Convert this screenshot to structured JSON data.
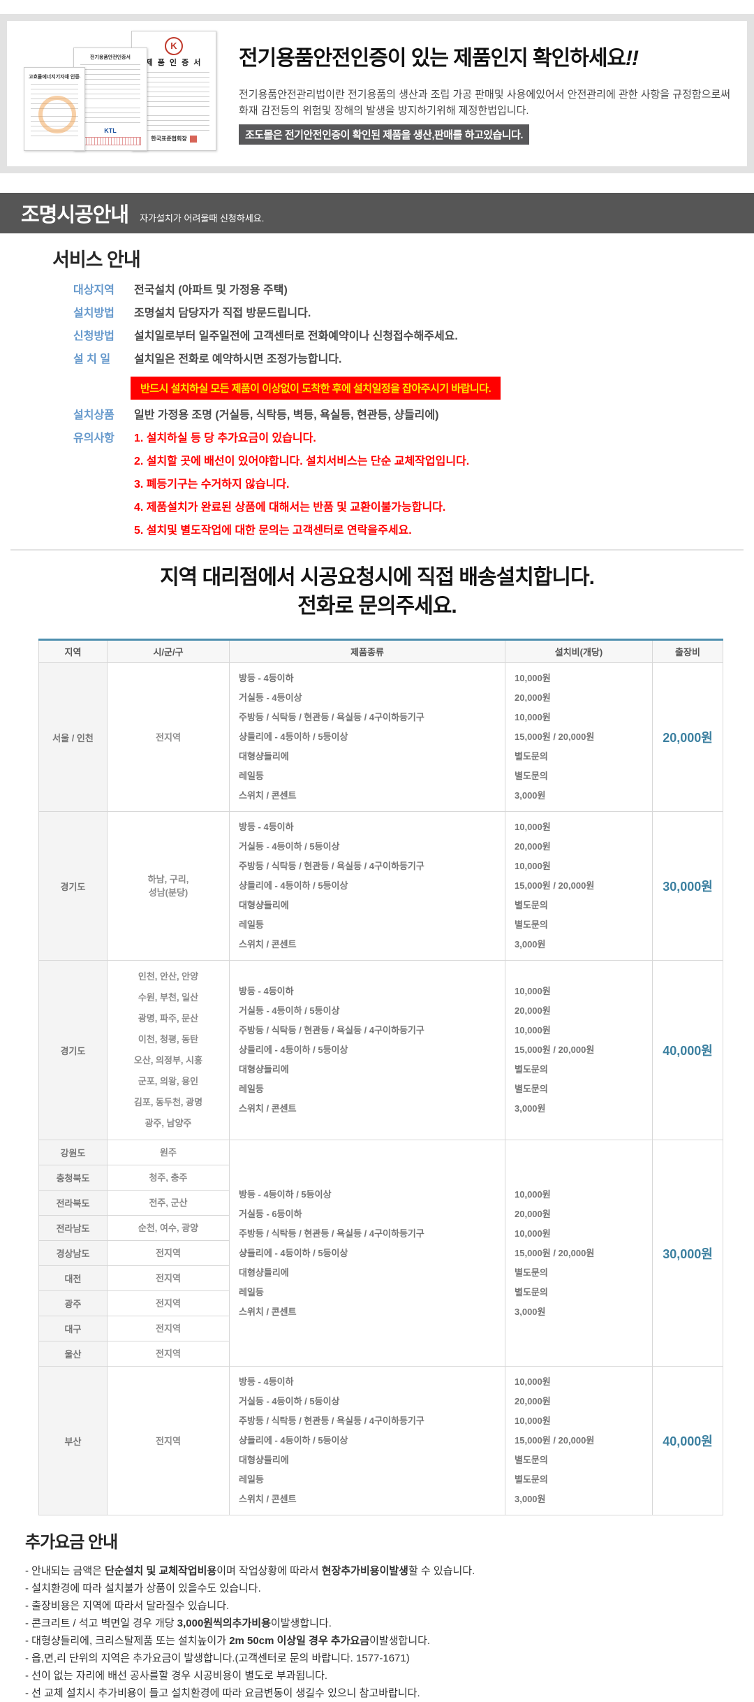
{
  "certification": {
    "title_strong": "전기용품안전인증",
    "title_rest": "이 있는 제품인지 확인하세요",
    "title_bang": "!!",
    "desc_line1": "전기용품안전관리법이란 전기용품의 생산과 조립 가공 판매및 사용에있어서 안전관리에 관한 사항을 규정함으로써",
    "desc_line2": "화재 감전등의 위험및 장해의 발생을 방지하기위해 제정한법입니다.",
    "highlight": "조도몰은 전기안전인증이 확인된 제품을 생산,판매를 하고있습니다.",
    "cert1_title": "고효율에너지기자재 인증서",
    "cert2_title": "전기용품안전인증서",
    "cert3_title": "제 품 인 증 서",
    "cert3_logo": "K",
    "cert3_footer": "한국표준협회장",
    "cert2_mark": "KTL"
  },
  "banner": {
    "title": "조명시공안내",
    "subtitle": "자가설치가 어려울때 신청하세요."
  },
  "service": {
    "heading": "서비스 안내",
    "info_rows": [
      {
        "label": "대상지역",
        "value": "전국설치 (아파트 및 가정용 주택)"
      },
      {
        "label": "설치방법",
        "value": "조명설치 담당자가 직접 방문드립니다."
      },
      {
        "label": "신청방법",
        "value": "설치일로부터 일주일전에 고객센터로 전화예약이나 신청접수해주세요."
      },
      {
        "label": "설 치 일",
        "value": "설치일은 전화로 예약하시면 조정가능합니다."
      }
    ],
    "warning": "반드시 설치하실 모든 제품이 이상없이 도착한 후에 설치일정을 잡아주시기 바랍니다.",
    "product_row": {
      "label": "설치상품",
      "value": "일반 가정용 조명 (거실등, 식탁등, 벽등, 욕실등, 현관등, 샹들리에)"
    },
    "notice_label": "유의사항",
    "notices": [
      "1. 설치하실 등 당 추가요금이 있습니다.",
      "2. 설치할 곳에 배선이 있어야합니다. 설치서비스는 단순 교체작업입니다.",
      "3. 폐등기구는 수거하지 않습니다.",
      "4. 제품설치가 완료된 상품에 대해서는 반품 및 교환이불가능합니다.",
      "5. 설치및 별도작업에 대한 문의는 고객센터로 연락을주세요."
    ]
  },
  "delivery_heading": {
    "line1": "지역 대리점에서 시공요청시에 직접 배송설치합니다.",
    "line2": "전화로 문의주세요."
  },
  "install_table": {
    "headers": [
      "지역",
      "시/군/구",
      "제품종류",
      "설치비(개당)",
      "출장비"
    ],
    "sections": [
      {
        "rows": [
          {
            "region": "서울 / 인천",
            "districts": [
              "전지역"
            ]
          }
        ],
        "products": [
          {
            "name": "방등 - 4등이하",
            "price": "10,000원"
          },
          {
            "name": "거실등 - 4등이상",
            "price": "20,000원"
          },
          {
            "name": "주방등 / 식탁등 / 현관등 / 욕실등 / 4구이하등기구",
            "price": "10,000원"
          },
          {
            "name": "샹들리에 - 4등이하 / 5등이상",
            "price": "15,000원 / 20,000원"
          },
          {
            "name": "대형샹들리에",
            "price": "별도문의"
          },
          {
            "name": "레일등",
            "price": "별도문의"
          },
          {
            "name": "스위치 / 콘센트",
            "price": "3,000원"
          }
        ],
        "fee": "20,000원"
      },
      {
        "rows": [
          {
            "region": "경기도",
            "districts": [
              "하남, 구리,",
              "성남(분당)"
            ]
          }
        ],
        "products": [
          {
            "name": "방등 - 4등이하",
            "price": "10,000원"
          },
          {
            "name": "거실등 - 4등이하 / 5등이상",
            "price": "20,000원"
          },
          {
            "name": "주방등 / 식탁등 / 현관등 / 욕실등 / 4구이하등기구",
            "price": "10,000원"
          },
          {
            "name": "샹들리에 - 4등이하 / 5등이상",
            "price": "15,000원 / 20,000원"
          },
          {
            "name": "대형샹들리에",
            "price": "별도문의"
          },
          {
            "name": "레일등",
            "price": "별도문의"
          },
          {
            "name": "스위치 / 콘센트",
            "price": "3,000원"
          }
        ],
        "fee": "30,000원"
      },
      {
        "rows": [
          {
            "region": "경기도",
            "dlh": 30,
            "districts": [
              "인천, 안산, 안양",
              "수원, 부천, 일산",
              "광명, 파주, 문산",
              "이천, 청평, 동탄",
              "오산, 의정부, 시흥",
              "군포, 의왕, 용인",
              "김포, 동두천, 광명",
              "광주, 남양주"
            ]
          }
        ],
        "products": [
          {
            "name": "방등 - 4등이하",
            "price": "10,000원"
          },
          {
            "name": "거실등 - 4등이하 / 5등이상",
            "price": "20,000원"
          },
          {
            "name": "주방등 / 식탁등 / 현관등 / 욕실등 / 4구이하등기구",
            "price": "10,000원"
          },
          {
            "name": "샹들리에 - 4등이하 / 5등이상",
            "price": "15,000원 / 20,000원"
          },
          {
            "name": "대형샹들리에",
            "price": "별도문의"
          },
          {
            "name": "레일등",
            "price": "별도문의"
          },
          {
            "name": "스위치 / 콘센트",
            "price": "3,000원"
          }
        ],
        "fee": "40,000원"
      },
      {
        "rows": [
          {
            "region": "강원도",
            "districts": [
              "원주"
            ]
          },
          {
            "region": "충청북도",
            "districts": [
              "청주, 충주"
            ]
          },
          {
            "region": "전라북도",
            "districts": [
              "전주, 군산"
            ]
          },
          {
            "region": "전라남도",
            "districts": [
              "순천, 여수, 광양"
            ]
          },
          {
            "region": "경상남도",
            "districts": [
              "전지역"
            ]
          },
          {
            "region": "대전",
            "districts": [
              "전지역"
            ]
          },
          {
            "region": "광주",
            "districts": [
              "전지역"
            ]
          },
          {
            "region": "대구",
            "districts": [
              "전지역"
            ]
          },
          {
            "region": "울산",
            "districts": [
              "전지역"
            ]
          }
        ],
        "products": [
          {
            "name": "방등 - 4등이하 / 5등이상",
            "price": "10,000원"
          },
          {
            "name": "거실등 - 6등이하",
            "price": "20,000원"
          },
          {
            "name": "주방등 / 식탁등 / 현관등 / 욕실등 / 4구이하등기구",
            "price": "10,000원"
          },
          {
            "name": "샹들리에 - 4등이하 / 5등이상",
            "price": "15,000원 / 20,000원"
          },
          {
            "name": "대형샹들리에",
            "price": "별도문의"
          },
          {
            "name": "레일등",
            "price": "별도문의"
          },
          {
            "name": "스위치 / 콘센트",
            "price": "3,000원"
          }
        ],
        "fee": "30,000원"
      },
      {
        "rows": [
          {
            "region": "부산",
            "districts": [
              "전지역"
            ]
          }
        ],
        "products": [
          {
            "name": "방등 - 4등이하",
            "price": "10,000원"
          },
          {
            "name": "거실등 - 4등이하 / 5등이상",
            "price": "20,000원"
          },
          {
            "name": "주방등 / 식탁등 / 현관등 / 욕실등 / 4구이하등기구",
            "price": "10,000원"
          },
          {
            "name": "샹들리에 - 4등이하 / 5등이상",
            "price": "15,000원 / 20,000원"
          },
          {
            "name": "대형샹들리에",
            "price": "별도문의"
          },
          {
            "name": "레일등",
            "price": "별도문의"
          },
          {
            "name": "스위치 / 콘센트",
            "price": "3,000원"
          }
        ],
        "fee": "40,000원"
      }
    ]
  },
  "extra_fees": {
    "heading": "추가요금 안내",
    "items": [
      [
        {
          "t": "- 안내되는 금액은 "
        },
        {
          "t": "단순설치 및 교체작업비용",
          "b": true
        },
        {
          "t": "이며 작업상황에 따라서 "
        },
        {
          "t": "현장추가비용이발생",
          "b": true
        },
        {
          "t": "할 수 있습니다."
        }
      ],
      [
        {
          "t": "- 설치환경에 따라 설치불가 상품이 있을수도 있습니다."
        }
      ],
      [
        {
          "t": "- 출장비용은 지역에 따라서 달라질수 있습니다."
        }
      ],
      [
        {
          "t": "- 콘크리트 / 석고 벽면일 경우 개당 "
        },
        {
          "t": "3,000원씩의추가비용",
          "b": true
        },
        {
          "t": "이발생합니다."
        }
      ],
      [
        {
          "t": "- 대형샹들리에, 크리스탈제품 또는 설치높이가 "
        },
        {
          "t": "2m 50cm 이상일 경우 추가요금",
          "b": true
        },
        {
          "t": "이발생합니다."
        }
      ],
      [
        {
          "t": "- 읍,면,리 단위의 지역은 추가요금이 발생합니다.(고객센터로 문의 바랍니다. 1577-1671)"
        }
      ],
      [
        {
          "t": "- 선이 없는 자리에 배선 공사를할 경우 시공비용이 별도로 부과됩니다."
        }
      ],
      [
        {
          "t": "- 선 교체 설치시 추가비용이 들고 설치환경에 따라 요금변동이 생길수 있으니 참고바랍니다."
        }
      ]
    ]
  },
  "colors": {
    "table_top_border": "#4e8fae",
    "trip_fee_text": "#3c80a0",
    "label_blue": "#6699cc",
    "warning_bg": "#ff0000",
    "warning_text": "#ffe400",
    "notice_red": "#ff0000",
    "banner_bg": "#565656",
    "highlight_bg": "#58585a"
  }
}
